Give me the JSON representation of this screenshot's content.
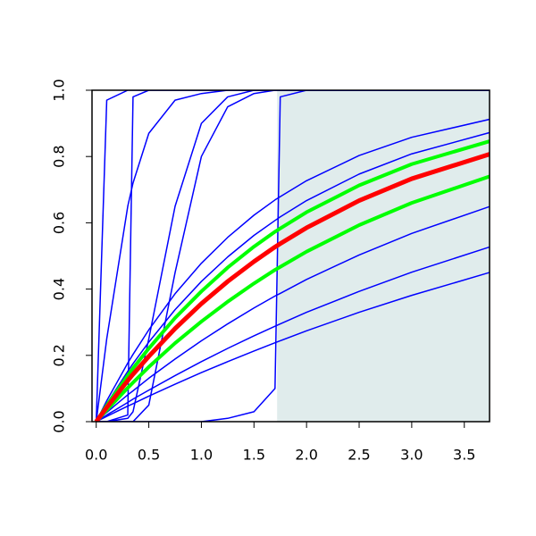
{
  "chart_data": {
    "type": "line",
    "x": [
      0,
      0.1,
      0.3,
      0.35,
      0.5,
      0.75,
      1,
      1.25,
      1.5,
      1.7,
      1.75,
      2,
      2.5,
      3,
      3.75
    ],
    "xlim": [
      -0.04,
      3.74
    ],
    "ylim": [
      0,
      1
    ],
    "xticks": [
      {
        "value": 0,
        "label": "0.0"
      },
      {
        "value": 0.5,
        "label": "0.5"
      },
      {
        "value": 1,
        "label": "1.0"
      },
      {
        "value": 1.5,
        "label": "1.5"
      },
      {
        "value": 2,
        "label": "2.0"
      },
      {
        "value": 2.5,
        "label": "2.5"
      },
      {
        "value": 3,
        "label": "3.0"
      },
      {
        "value": 3.5,
        "label": "3.5"
      }
    ],
    "yticks": [
      {
        "value": 0,
        "label": "0.0"
      },
      {
        "value": 0.2,
        "label": "0.2"
      },
      {
        "value": 0.4,
        "label": "0.4"
      },
      {
        "value": 0.6,
        "label": "0.6"
      },
      {
        "value": 0.8,
        "label": "0.8"
      },
      {
        "value": 1,
        "label": "1.0"
      }
    ],
    "shade_from": 1.72,
    "shade_color": "#e0ecec",
    "series": [
      {
        "color": "#0000ff",
        "width": 1.5,
        "values": [
          0,
          0.063,
          0.177,
          0.203,
          0.277,
          0.386,
          0.478,
          0.556,
          0.623,
          0.669,
          0.679,
          0.727,
          0.803,
          0.858,
          0.913
        ]
      },
      {
        "color": "#0000ff",
        "width": 1.5,
        "values": [
          0,
          0.054,
          0.152,
          0.175,
          0.24,
          0.338,
          0.423,
          0.497,
          0.562,
          0.607,
          0.618,
          0.667,
          0.747,
          0.808,
          0.873
        ]
      },
      {
        "color": "#0000ff",
        "width": 1.5,
        "values": [
          0,
          0.028,
          0.081,
          0.093,
          0.131,
          0.189,
          0.244,
          0.295,
          0.343,
          0.379,
          0.387,
          0.429,
          0.503,
          0.568,
          0.65
        ]
      },
      {
        "color": "#0000ff",
        "width": 1.5,
        "values": [
          0,
          0.02,
          0.058,
          0.068,
          0.095,
          0.139,
          0.181,
          0.221,
          0.259,
          0.288,
          0.295,
          0.33,
          0.393,
          0.451,
          0.528
        ]
      },
      {
        "color": "#0000ff",
        "width": 1.5,
        "values": [
          0,
          0.016,
          0.047,
          0.054,
          0.077,
          0.113,
          0.148,
          0.181,
          0.213,
          0.238,
          0.244,
          0.274,
          0.33,
          0.381,
          0.451
        ]
      },
      {
        "color": "#0000ff",
        "width": 1.5,
        "values": [
          0,
          0.97,
          1,
          1,
          1,
          1,
          1,
          1,
          1,
          1,
          1,
          1,
          1,
          1,
          1
        ]
      },
      {
        "color": "#0000ff",
        "width": 1.5,
        "values": [
          0,
          0.25,
          0.65,
          0.72,
          0.87,
          0.97,
          0.99,
          1,
          1,
          1,
          1,
          1,
          1,
          1,
          1
        ]
      },
      {
        "color": "#0000ff",
        "width": 1.5,
        "values": [
          0,
          0,
          0.02,
          0.98,
          1,
          1,
          1,
          1,
          1,
          1,
          1,
          1,
          1,
          1,
          1
        ]
      },
      {
        "color": "#0000ff",
        "width": 1.5,
        "values": [
          0,
          0,
          0.01,
          0.03,
          0.25,
          0.65,
          0.9,
          0.98,
          1,
          1,
          1,
          1,
          1,
          1,
          1
        ]
      },
      {
        "color": "#0000ff",
        "width": 1.5,
        "values": [
          0,
          0,
          0,
          0,
          0.05,
          0.45,
          0.8,
          0.95,
          0.99,
          1,
          1,
          1,
          1,
          1,
          1
        ]
      },
      {
        "color": "#0000ff",
        "width": 1.5,
        "values": [
          0,
          0,
          0,
          0,
          0,
          0,
          0,
          0.01,
          0.03,
          0.1,
          0.98,
          1,
          1,
          1,
          1
        ]
      },
      {
        "color": "#00ff00",
        "width": 4,
        "values": [
          0,
          0.049,
          0.139,
          0.161,
          0.221,
          0.313,
          0.393,
          0.465,
          0.528,
          0.573,
          0.583,
          0.632,
          0.713,
          0.777,
          0.847
        ]
      },
      {
        "color": "#00ff00",
        "width": 4,
        "values": [
          0,
          0.035,
          0.102,
          0.118,
          0.165,
          0.237,
          0.302,
          0.362,
          0.417,
          0.458,
          0.467,
          0.513,
          0.593,
          0.66,
          0.741
        ]
      },
      {
        "color": "#ff0000",
        "width": 5,
        "values": [
          0,
          0.043,
          0.124,
          0.143,
          0.197,
          0.281,
          0.356,
          0.423,
          0.483,
          0.527,
          0.537,
          0.585,
          0.667,
          0.733,
          0.808
        ]
      }
    ]
  }
}
